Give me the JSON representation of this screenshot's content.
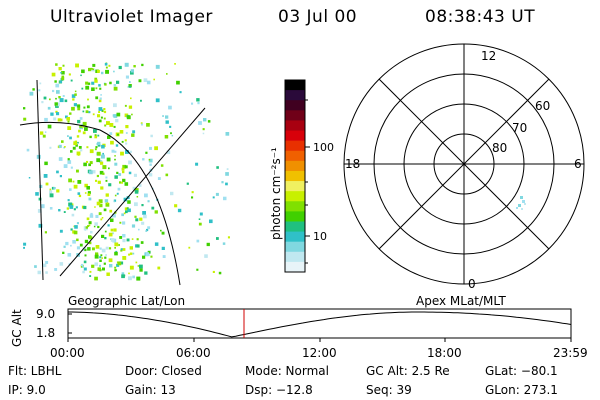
{
  "header": {
    "instrument": "Ultraviolet Imager",
    "date": "03 Jul 00",
    "time": "08:38:43 UT"
  },
  "colorbar": {
    "label": "photon cm⁻²s⁻¹",
    "ticks": [
      "100",
      "10"
    ],
    "colors": [
      "#000000",
      "#2a0a3a",
      "#400020",
      "#700018",
      "#a80010",
      "#d8000a",
      "#e83000",
      "#f06000",
      "#f09000",
      "#f0c000",
      "#f0f060",
      "#c8f000",
      "#80e000",
      "#40d000",
      "#20c080",
      "#30c0c8",
      "#80d8e0",
      "#c0e8f0",
      "#e8f4f8"
    ]
  },
  "left_panel": {
    "caption": "Geographic Lat/Lon"
  },
  "right_panel": {
    "caption": "Apex MLat/MLT",
    "mlt_labels": {
      "top": "12",
      "left": "18",
      "right": "6",
      "bottom": "0"
    },
    "lat_labels": [
      "60",
      "70",
      "80"
    ]
  },
  "altitude_plot": {
    "ylabel": "GC Alt",
    "yticks": [
      "9.0",
      "1.8"
    ],
    "xticks": [
      "00:00",
      "06:00",
      "12:00",
      "18:00",
      "23:59"
    ],
    "current_time_marker": "08:38"
  },
  "info": {
    "filter": "Flt: LBHL",
    "ip": "IP: 9.0",
    "door": "Door: Closed",
    "gain": "Gain: 13",
    "mode": "Mode: Normal",
    "dsp": "Dsp: −12.8",
    "gc_alt": "GC Alt: 2.5 Re",
    "seq": "Seq: 39",
    "glat": "GLat: −80.1",
    "glon": "GLon: 273.1"
  }
}
